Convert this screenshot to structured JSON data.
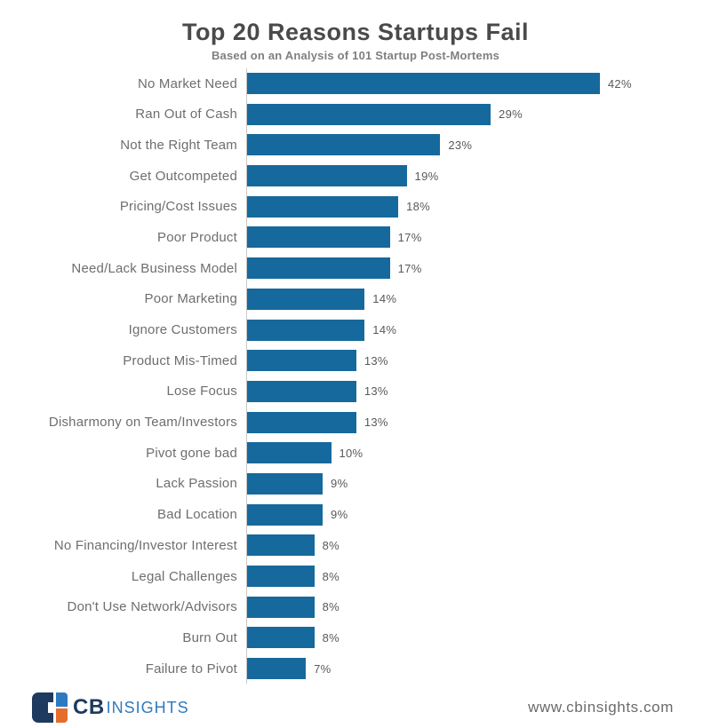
{
  "chart_data": {
    "type": "bar",
    "orientation": "horizontal",
    "title": "Top 20 Reasons Startups Fail",
    "subtitle": "Based on an Analysis of 101 Startup Post-Mortems",
    "categories": [
      "No Market Need",
      "Ran Out of Cash",
      "Not the Right Team",
      "Get Outcompeted",
      "Pricing/Cost Issues",
      "Poor Product",
      "Need/Lack Business Model",
      "Poor Marketing",
      "Ignore Customers",
      "Product Mis-Timed",
      "Lose Focus",
      "Disharmony on Team/Investors",
      "Pivot gone bad",
      "Lack Passion",
      "Bad Location",
      "No Financing/Investor Interest",
      "Legal Challenges",
      "Don't Use Network/Advisors",
      "Burn Out",
      "Failure to Pivot"
    ],
    "values": [
      42,
      29,
      23,
      19,
      18,
      17,
      17,
      14,
      14,
      13,
      13,
      13,
      10,
      9,
      9,
      8,
      8,
      8,
      8,
      7
    ],
    "value_labels": [
      "42%",
      "29%",
      "23%",
      "19%",
      "18%",
      "17%",
      "17%",
      "14%",
      "14%",
      "13%",
      "13%",
      "13%",
      "10%",
      "9%",
      "9%",
      "8%",
      "8%",
      "8%",
      "8%",
      "7%"
    ],
    "xlabel": "",
    "ylabel": "",
    "xlim": [
      0,
      45
    ],
    "grid": false,
    "legend": false,
    "bar_color": "#16699c",
    "axis_line_color": "#c9c9c9"
  },
  "footer": {
    "logo": {
      "cb": "CB",
      "insights": "INSIGHTS",
      "navy": "#1f3a5f",
      "blue": "#2e7abf",
      "orange": "#e66c2c"
    },
    "url": "www.cbinsights.com"
  }
}
